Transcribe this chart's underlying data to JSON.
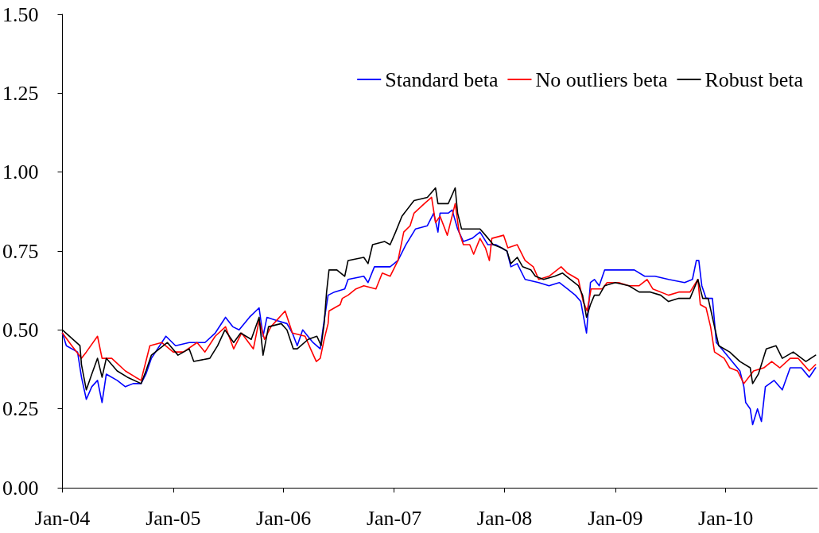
{
  "chart_data": {
    "type": "line",
    "xlim": [
      "2004-01-01",
      "2010-10-31"
    ],
    "xticks": [
      {
        "value": "2004-01-01",
        "label": "Jan-04"
      },
      {
        "value": "2005-01-01",
        "label": "Jan-05"
      },
      {
        "value": "2006-01-01",
        "label": "Jan-06"
      },
      {
        "value": "2007-01-01",
        "label": "Jan-07"
      },
      {
        "value": "2008-01-01",
        "label": "Jan-08"
      },
      {
        "value": "2009-01-01",
        "label": "Jan-09"
      },
      {
        "value": "2010-01-01",
        "label": "Jan-10"
      }
    ],
    "ylim": [
      0,
      1.5
    ],
    "yticks": [
      {
        "value": 0,
        "label": "0.00"
      },
      {
        "value": 0.25,
        "label": "0.25"
      },
      {
        "value": 0.5,
        "label": "0.50"
      },
      {
        "value": 0.75,
        "label": "0.75"
      },
      {
        "value": 1,
        "label": "1.00"
      },
      {
        "value": 1.25,
        "label": "1.25"
      },
      {
        "value": 1.5,
        "label": "1.50"
      }
    ],
    "grid": false,
    "legend": "top right",
    "marker": "none",
    "series": [
      {
        "name": "Standard beta",
        "color": "#0000ff",
        "x": [
          "2004-01-01",
          "2004-01-14",
          "2004-02-20",
          "2004-03-04",
          "2004-03-20",
          "2004-04-07",
          "2004-04-26",
          "2004-05-11",
          "2004-05-25",
          "2004-06-30",
          "2004-07-27",
          "2004-08-22",
          "2004-09-17",
          "2004-10-03",
          "2004-10-21",
          "2004-12-08",
          "2005-01-09",
          "2005-02-23",
          "2005-04-16",
          "2005-05-20",
          "2005-06-23",
          "2005-07-17",
          "2005-08-07",
          "2005-09-10",
          "2005-10-12",
          "2005-10-25",
          "2005-11-07",
          "2005-12-09",
          "2006-01-12",
          "2006-01-30",
          "2006-02-15",
          "2006-03-05",
          "2006-04-08",
          "2006-05-02",
          "2006-05-15",
          "2006-05-28",
          "2006-06-18",
          "2006-07-22",
          "2006-08-02",
          "2006-09-23",
          "2006-10-07",
          "2006-10-28",
          "2006-12-19",
          "2007-01-14",
          "2007-02-09",
          "2007-03-13",
          "2007-04-21",
          "2007-05-12",
          "2007-05-26",
          "2007-06-02",
          "2007-06-29",
          "2007-07-12",
          "2007-07-30",
          "2007-08-18",
          "2007-09-16",
          "2007-10-12",
          "2007-11-07",
          "2007-12-03",
          "2008-01-09",
          "2008-01-22",
          "2008-02-12",
          "2008-03-09",
          "2008-04-23",
          "2008-05-27",
          "2008-06-30",
          "2008-07-27",
          "2008-08-22",
          "2008-09-09",
          "2008-09-28",
          "2008-10-11",
          "2008-10-24",
          "2008-11-09",
          "2008-11-27",
          "2009-01-01",
          "2009-02-15",
          "2009-03-05",
          "2009-04-08",
          "2009-05-12",
          "2009-06-26",
          "2009-08-18",
          "2009-09-13",
          "2009-09-26",
          "2009-10-04",
          "2009-10-14",
          "2009-10-28",
          "2009-11-18",
          "2009-12-01",
          "2009-12-19",
          "2010-01-22",
          "2010-02-17",
          "2010-03-02",
          "2010-03-08",
          "2010-03-23",
          "2010-03-31",
          "2010-04-16",
          "2010-04-29",
          "2010-05-12",
          "2010-06-10",
          "2010-07-07",
          "2010-08-02",
          "2010-09-08",
          "2010-10-04",
          "2010-10-25"
        ],
        "values": [
          0.49,
          0.45,
          0.43,
          0.35,
          0.28,
          0.32,
          0.34,
          0.27,
          0.36,
          0.34,
          0.32,
          0.33,
          0.33,
          0.36,
          0.41,
          0.48,
          0.45,
          0.46,
          0.46,
          0.49,
          0.54,
          0.51,
          0.5,
          0.54,
          0.57,
          0.48,
          0.54,
          0.53,
          0.52,
          0.49,
          0.45,
          0.5,
          0.46,
          0.44,
          0.53,
          0.61,
          0.62,
          0.63,
          0.66,
          0.67,
          0.65,
          0.7,
          0.7,
          0.72,
          0.77,
          0.82,
          0.83,
          0.87,
          0.81,
          0.87,
          0.87,
          0.88,
          0.82,
          0.78,
          0.79,
          0.81,
          0.77,
          0.77,
          0.75,
          0.7,
          0.71,
          0.66,
          0.65,
          0.64,
          0.65,
          0.63,
          0.61,
          0.59,
          0.49,
          0.65,
          0.66,
          0.64,
          0.69,
          0.69,
          0.69,
          0.69,
          0.67,
          0.67,
          0.66,
          0.65,
          0.66,
          0.72,
          0.72,
          0.64,
          0.6,
          0.6,
          0.46,
          0.44,
          0.4,
          0.37,
          0.32,
          0.27,
          0.25,
          0.2,
          0.25,
          0.21,
          0.32,
          0.34,
          0.31,
          0.38,
          0.38,
          0.35,
          0.38
        ]
      },
      {
        "name": "No outliers beta",
        "color": "#ff0000",
        "x": [
          "2004-01-01",
          "2004-02-01",
          "2004-03-04",
          "2004-03-20",
          "2004-04-26",
          "2004-05-11",
          "2004-06-12",
          "2004-07-27",
          "2004-08-30",
          "2004-09-17",
          "2004-10-16",
          "2004-11-24",
          "2005-01-01",
          "2005-02-04",
          "2005-03-21",
          "2005-04-16",
          "2005-05-20",
          "2005-06-23",
          "2005-07-20",
          "2005-08-15",
          "2005-09-23",
          "2005-10-12",
          "2005-10-30",
          "2005-11-20",
          "2006-01-06",
          "2006-01-30",
          "2006-03-13",
          "2006-03-31",
          "2006-04-19",
          "2006-05-02",
          "2006-05-15",
          "2006-05-28",
          "2006-05-31",
          "2006-07-07",
          "2006-07-14",
          "2006-08-02",
          "2006-08-28",
          "2006-09-23",
          "2006-11-02",
          "2006-11-23",
          "2006-12-19",
          "2007-01-14",
          "2007-02-02",
          "2007-02-23",
          "2007-03-08",
          "2007-04-11",
          "2007-05-05",
          "2007-05-18",
          "2007-06-02",
          "2007-06-26",
          "2007-07-22",
          "2007-08-04",
          "2007-08-18",
          "2007-09-08",
          "2007-09-21",
          "2007-10-12",
          "2007-10-30",
          "2007-11-12",
          "2007-11-20",
          "2007-12-29",
          "2008-01-12",
          "2008-02-12",
          "2008-03-09",
          "2008-04-05",
          "2008-04-23",
          "2008-05-27",
          "2008-07-06",
          "2008-07-27",
          "2008-09-01",
          "2008-09-17",
          "2008-09-30",
          "2008-10-13",
          "2008-11-19",
          "2008-12-05",
          "2009-01-12",
          "2009-02-15",
          "2009-03-21",
          "2009-04-16",
          "2009-05-05",
          "2009-06-26",
          "2009-07-30",
          "2009-09-05",
          "2009-10-01",
          "2009-10-09",
          "2009-10-28",
          "2009-11-12",
          "2009-11-25",
          "2009-12-27",
          "2010-01-14",
          "2010-02-09",
          "2010-03-02",
          "2010-04-03",
          "2010-05-07",
          "2010-06-02",
          "2010-06-29",
          "2010-08-02",
          "2010-08-28",
          "2010-10-04",
          "2010-10-25"
        ],
        "values": [
          0.49,
          0.45,
          0.41,
          0.43,
          0.48,
          0.41,
          0.41,
          0.37,
          0.35,
          0.34,
          0.45,
          0.46,
          0.43,
          0.43,
          0.46,
          0.43,
          0.48,
          0.51,
          0.44,
          0.49,
          0.44,
          0.53,
          0.47,
          0.51,
          0.56,
          0.49,
          0.48,
          0.44,
          0.4,
          0.41,
          0.47,
          0.52,
          0.56,
          0.58,
          0.6,
          0.61,
          0.63,
          0.64,
          0.63,
          0.68,
          0.67,
          0.72,
          0.81,
          0.83,
          0.87,
          0.9,
          0.92,
          0.84,
          0.86,
          0.8,
          0.9,
          0.81,
          0.77,
          0.77,
          0.74,
          0.79,
          0.76,
          0.72,
          0.79,
          0.8,
          0.76,
          0.77,
          0.72,
          0.7,
          0.66,
          0.67,
          0.7,
          0.68,
          0.66,
          0.59,
          0.56,
          0.63,
          0.63,
          0.65,
          0.65,
          0.64,
          0.64,
          0.66,
          0.63,
          0.61,
          0.62,
          0.62,
          0.66,
          0.58,
          0.57,
          0.51,
          0.43,
          0.41,
          0.38,
          0.37,
          0.33,
          0.37,
          0.38,
          0.4,
          0.38,
          0.41,
          0.41,
          0.37,
          0.39
        ]
      },
      {
        "name": "Robust beta",
        "color": "#000000",
        "x": [
          "2004-01-01",
          "2004-02-28",
          "2004-03-04",
          "2004-03-20",
          "2004-04-07",
          "2004-04-26",
          "2004-05-11",
          "2004-05-25",
          "2004-06-30",
          "2004-08-03",
          "2004-09-17",
          "2004-10-03",
          "2004-10-21",
          "2004-12-13",
          "2005-01-17",
          "2005-02-23",
          "2005-03-10",
          "2005-05-02",
          "2005-05-28",
          "2005-06-21",
          "2005-07-20",
          "2005-08-12",
          "2005-09-16",
          "2005-10-12",
          "2005-10-25",
          "2005-11-12",
          "2005-12-24",
          "2006-01-12",
          "2006-02-02",
          "2006-02-15",
          "2006-03-23",
          "2006-04-21",
          "2006-05-05",
          "2006-05-15",
          "2006-05-23",
          "2006-05-31",
          "2006-06-26",
          "2006-07-22",
          "2006-08-02",
          "2006-09-23",
          "2006-10-07",
          "2006-10-22",
          "2006-12-01",
          "2006-12-19",
          "2007-01-06",
          "2007-01-27",
          "2007-03-08",
          "2007-04-21",
          "2007-05-18",
          "2007-05-26",
          "2007-06-29",
          "2007-07-22",
          "2007-07-30",
          "2007-08-12",
          "2007-09-26",
          "2007-10-12",
          "2007-10-30",
          "2007-11-25",
          "2007-12-22",
          "2008-01-09",
          "2008-01-22",
          "2008-02-12",
          "2008-03-01",
          "2008-03-28",
          "2008-04-12",
          "2008-05-09",
          "2008-06-15",
          "2008-07-11",
          "2008-08-06",
          "2008-09-01",
          "2008-09-15",
          "2008-09-28",
          "2008-10-11",
          "2008-10-24",
          "2008-11-09",
          "2008-11-27",
          "2009-01-01",
          "2009-02-15",
          "2009-03-21",
          "2009-04-27",
          "2009-05-31",
          "2009-06-26",
          "2009-07-30",
          "2009-09-05",
          "2009-10-01",
          "2009-10-17",
          "2009-11-04",
          "2009-11-25",
          "2009-12-09",
          "2010-01-14",
          "2010-02-17",
          "2010-03-23",
          "2010-03-31",
          "2010-04-19",
          "2010-05-15",
          "2010-06-16",
          "2010-07-07",
          "2010-08-12",
          "2010-09-23",
          "2010-10-25"
        ],
        "values": [
          0.5,
          0.45,
          0.39,
          0.31,
          0.36,
          0.41,
          0.35,
          0.41,
          0.37,
          0.35,
          0.33,
          0.37,
          0.42,
          0.46,
          0.42,
          0.44,
          0.4,
          0.41,
          0.45,
          0.5,
          0.46,
          0.49,
          0.47,
          0.54,
          0.42,
          0.51,
          0.52,
          0.5,
          0.44,
          0.44,
          0.47,
          0.48,
          0.45,
          0.52,
          0.62,
          0.69,
          0.69,
          0.67,
          0.72,
          0.73,
          0.71,
          0.77,
          0.78,
          0.77,
          0.81,
          0.86,
          0.91,
          0.92,
          0.95,
          0.9,
          0.9,
          0.95,
          0.87,
          0.82,
          0.82,
          0.82,
          0.8,
          0.77,
          0.76,
          0.75,
          0.71,
          0.73,
          0.7,
          0.69,
          0.67,
          0.66,
          0.67,
          0.68,
          0.66,
          0.64,
          0.61,
          0.54,
          0.58,
          0.61,
          0.61,
          0.64,
          0.65,
          0.64,
          0.62,
          0.62,
          0.61,
          0.59,
          0.6,
          0.6,
          0.66,
          0.6,
          0.6,
          0.51,
          0.45,
          0.43,
          0.4,
          0.38,
          0.33,
          0.36,
          0.44,
          0.45,
          0.41,
          0.43,
          0.4,
          0.42
        ]
      }
    ]
  }
}
